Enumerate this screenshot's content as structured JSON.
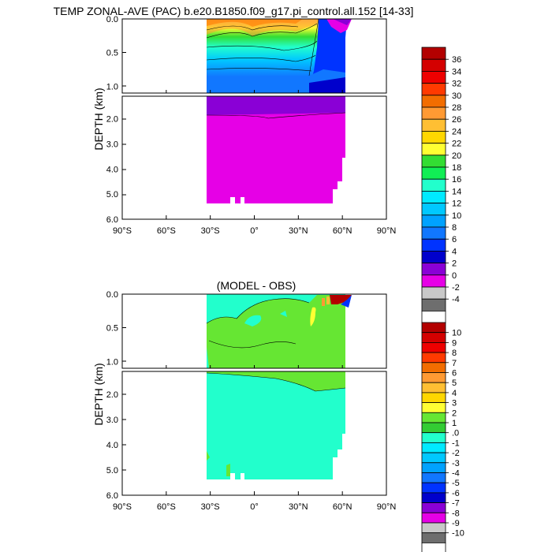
{
  "chart_data": [
    {
      "type": "heatmap",
      "title": "TEMP ZONAL-AVE (PAC) b.e20.B1850.f09_g17.pi_control.all.152 [14-33]",
      "ylabel": "DEPTH (km)",
      "xlim": [
        -90,
        90
      ],
      "x_ticks": [
        "90°S",
        "60°S",
        "30°S",
        "0°",
        "30°N",
        "60°N",
        "90°N"
      ],
      "upper_panel": {
        "ylim": [
          0.0,
          1.1
        ],
        "y_ticks": [
          "0.0",
          "0.5",
          "1.0"
        ]
      },
      "lower_panel": {
        "ylim": [
          1.1,
          6.0
        ],
        "y_ticks": [
          "2.0",
          "3.0",
          "4.0",
          "5.0",
          "6.0"
        ]
      },
      "colorbar": {
        "labels": [
          "36",
          "34",
          "32",
          "30",
          "28",
          "26",
          "24",
          "22",
          "20",
          "18",
          "16",
          "14",
          "12",
          "10",
          "8",
          "6",
          "4",
          "2",
          "0",
          "-2",
          "-4"
        ],
        "colors": [
          "#b30000",
          "#d40000",
          "#ee0000",
          "#ff3a00",
          "#f26d00",
          "#ff9a33",
          "#ffbf33",
          "#ffd700",
          "#ffff33",
          "#33dd33",
          "#11ee55",
          "#22ffcc",
          "#00eaff",
          "#00c8ff",
          "#00a2ff",
          "#1177ff",
          "#0033ff",
          "#0000cc",
          "#8a00d6",
          "#e600e6",
          "#c8c8c8",
          "#6e6e6e",
          "#ffffff"
        ]
      }
    },
    {
      "type": "heatmap",
      "title": "(MODEL - OBS)",
      "ylabel": "DEPTH (km)",
      "xlim": [
        -90,
        90
      ],
      "x_ticks": [
        "90°S",
        "60°S",
        "30°S",
        "0°",
        "30°N",
        "60°N",
        "90°N"
      ],
      "upper_panel": {
        "ylim": [
          0.0,
          1.1
        ],
        "y_ticks": [
          "0.0",
          "0.5",
          "1.0"
        ]
      },
      "lower_panel": {
        "ylim": [
          1.1,
          6.0
        ],
        "y_ticks": [
          "2.0",
          "3.0",
          "4.0",
          "5.0",
          "6.0"
        ]
      },
      "colorbar": {
        "labels": [
          "10",
          "9",
          "8",
          "7",
          "6",
          "5",
          "4",
          "3",
          "2",
          "1",
          ".0",
          "-1",
          "-2",
          "-3",
          "-4",
          "-5",
          "-6",
          "-7",
          "-8",
          "-9",
          "-10"
        ],
        "colors": [
          "#b30000",
          "#d40000",
          "#ee0000",
          "#ff3a00",
          "#f26d00",
          "#ff9a33",
          "#ffbf33",
          "#ffd700",
          "#ffff33",
          "#66e633",
          "#33cc33",
          "#22ffcc",
          "#00eaff",
          "#00c8ff",
          "#00a2ff",
          "#1177ff",
          "#0033ff",
          "#0000cc",
          "#8a00d6",
          "#e600e6",
          "#c8c8c8",
          "#6e6e6e",
          "#ffffff"
        ]
      }
    }
  ]
}
